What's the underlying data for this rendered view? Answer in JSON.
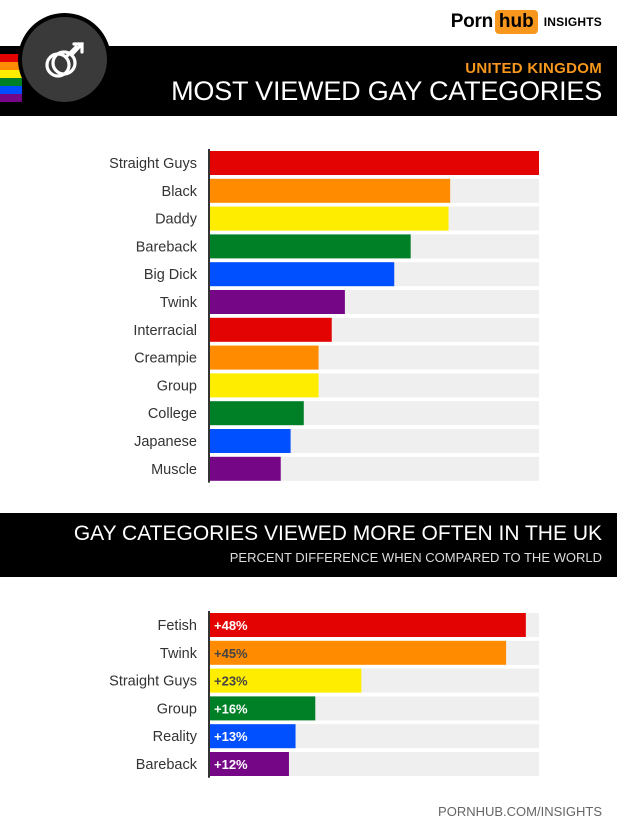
{
  "header": {
    "logo_porn": "Porn",
    "logo_hub": "hub",
    "logo_insights": "INSIGHTS",
    "emblem_icon": "male-male-symbol-icon",
    "rainbow_colors": [
      "#e40303",
      "#ff8c00",
      "#ffed00",
      "#008026",
      "#004dff",
      "#750787"
    ]
  },
  "section1": {
    "subtitle": "UNITED KINGDOM",
    "title": "MOST VIEWED GAY CATEGORIES"
  },
  "section2": {
    "title": "GAY CATEGORIES VIEWED MORE OFTEN IN THE UK",
    "subtitle": "PERCENT DIFFERENCE WHEN COMPARED TO THE WORLD"
  },
  "footer": {
    "text": "PORNHUB.COM/INSIGHTS"
  },
  "colors": {
    "red": "#e40303",
    "orange": "#ff8c00",
    "yellow": "#ffed00",
    "green": "#008026",
    "blue": "#0050ff",
    "purple": "#750787",
    "track": "#efefef",
    "accent": "#f7971e"
  },
  "chart_data": [
    {
      "type": "bar",
      "orientation": "horizontal",
      "title": "MOST VIEWED GAY CATEGORIES",
      "categories": [
        "Straight Guys",
        "Black",
        "Daddy",
        "Bareback",
        "Big Dick",
        "Twink",
        "Interracial",
        "Creampie",
        "Group",
        "College",
        "Japanese",
        "Muscle"
      ],
      "values": [
        100,
        73,
        72.5,
        61,
        56,
        41,
        37,
        33,
        33,
        28.5,
        24.5,
        21.5
      ],
      "unit": "relative to top category",
      "xlim": [
        0,
        100
      ],
      "bar_colors": [
        "#e40303",
        "#ff8c00",
        "#ffed00",
        "#008026",
        "#0050ff",
        "#750787",
        "#e40303",
        "#ff8c00",
        "#ffed00",
        "#008026",
        "#0050ff",
        "#750787"
      ],
      "data_labels": []
    },
    {
      "type": "bar",
      "orientation": "horizontal",
      "title": "GAY CATEGORIES VIEWED MORE OFTEN IN THE UK",
      "subtitle": "PERCENT DIFFERENCE WHEN COMPARED TO THE WORLD",
      "categories": [
        "Fetish",
        "Twink",
        "Straight Guys",
        "Group",
        "Reality",
        "Bareback"
      ],
      "values": [
        48,
        45,
        23,
        16,
        13,
        12
      ],
      "xlim": [
        0,
        50
      ],
      "bar_colors": [
        "#e40303",
        "#ff8c00",
        "#ffed00",
        "#008026",
        "#0050ff",
        "#750787"
      ],
      "data_labels": [
        "+48%",
        "+45%",
        "+23%",
        "+16%",
        "+13%",
        "+12%"
      ]
    }
  ]
}
